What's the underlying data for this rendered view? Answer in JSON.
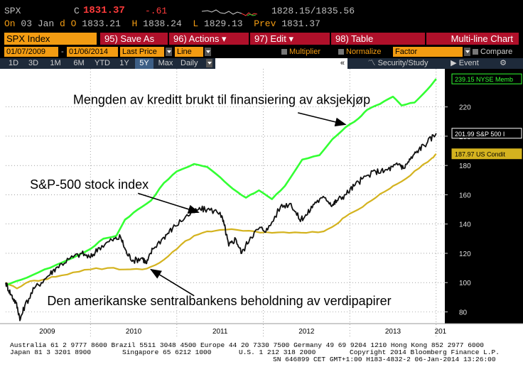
{
  "quote": {
    "symbol": "SPX",
    "close_flag": "C",
    "last": "1831.37",
    "change": "-.61",
    "bid_ask": "1828.15/1835.56",
    "on_label": "On",
    "date": "03 Jan",
    "d_label": "d",
    "open_label": "O",
    "open": "1833.21",
    "high_label": "H",
    "high": "1838.24",
    "low_label": "L",
    "low": "1829.13",
    "prev_label": "Prev",
    "prev": "1831.37"
  },
  "toolbar": {
    "security": "SPX Index",
    "save": "95) Save As",
    "actions": "96) Actions",
    "edit": "97) Edit",
    "table": "98) Table",
    "view": "Multi-line Chart"
  },
  "options": {
    "start_date": "01/07/2009",
    "dash": "-",
    "end_date": "01/06/2014",
    "field": "Last Price",
    "style": "Line",
    "multiplier": "Multiplier",
    "normalize": "Normalize",
    "factor": "Factor",
    "compare": "Compare"
  },
  "periods": {
    "items": [
      "1D",
      "3D",
      "1M",
      "6M",
      "YTD",
      "1Y",
      "5Y",
      "Max"
    ],
    "selected": "5Y",
    "frequency": "Daily",
    "collapse": "«",
    "security_study": "Security/Study",
    "event": "Event"
  },
  "chart_data": {
    "type": "line",
    "ylim": [
      72,
      246
    ],
    "y_ticks": [
      80,
      100,
      120,
      140,
      160,
      180,
      200,
      220
    ],
    "x_labels": [
      "2009",
      "2010",
      "2011",
      "2012",
      "2013",
      "201"
    ],
    "x_label_pos": [
      2009.5,
      2010.5,
      2011.5,
      2012.5,
      2013.5,
      2014.05
    ],
    "x_range": [
      2009.02,
      2014.1
    ],
    "series": [
      {
        "name": "NYSE Memb",
        "color": "#33ff33",
        "last_label": "239.15 NYSE Memb",
        "points": [
          [
            2009.02,
            98
          ],
          [
            2009.2,
            102
          ],
          [
            2009.4,
            107
          ],
          [
            2009.6,
            112
          ],
          [
            2009.8,
            117
          ],
          [
            2010.0,
            123
          ],
          [
            2010.15,
            130
          ],
          [
            2010.3,
            132
          ],
          [
            2010.4,
            143
          ],
          [
            2010.55,
            150
          ],
          [
            2010.7,
            156
          ],
          [
            2010.85,
            168
          ],
          [
            2011.0,
            176
          ],
          [
            2011.2,
            181
          ],
          [
            2011.35,
            179
          ],
          [
            2011.5,
            172
          ],
          [
            2011.65,
            164
          ],
          [
            2011.8,
            158
          ],
          [
            2011.95,
            163
          ],
          [
            2012.1,
            157
          ],
          [
            2012.25,
            166
          ],
          [
            2012.45,
            184
          ],
          [
            2012.65,
            187
          ],
          [
            2012.8,
            198
          ],
          [
            2012.95,
            206
          ],
          [
            2013.1,
            212
          ],
          [
            2013.2,
            218
          ],
          [
            2013.35,
            222
          ],
          [
            2013.5,
            227
          ],
          [
            2013.6,
            221
          ],
          [
            2013.75,
            223
          ],
          [
            2013.9,
            232
          ],
          [
            2014.0,
            239.15
          ]
        ]
      },
      {
        "name": "S&P 500 I",
        "color": "#111111",
        "last_label": "201.99 S&P 500 I",
        "points": [
          [
            2009.02,
            100
          ],
          [
            2009.08,
            92
          ],
          [
            2009.14,
            86
          ],
          [
            2009.19,
            75
          ],
          [
            2009.24,
            84
          ],
          [
            2009.35,
            96
          ],
          [
            2009.5,
            104
          ],
          [
            2009.6,
            110
          ],
          [
            2009.75,
            116
          ],
          [
            2009.9,
            120
          ],
          [
            2010.0,
            117
          ],
          [
            2010.1,
            124
          ],
          [
            2010.25,
            129
          ],
          [
            2010.35,
            131
          ],
          [
            2010.42,
            120
          ],
          [
            2010.5,
            115
          ],
          [
            2010.6,
            117
          ],
          [
            2010.65,
            113
          ],
          [
            2010.72,
            123
          ],
          [
            2010.85,
            131
          ],
          [
            2010.95,
            137
          ],
          [
            2011.1,
            145
          ],
          [
            2011.25,
            150
          ],
          [
            2011.35,
            150
          ],
          [
            2011.5,
            148
          ],
          [
            2011.55,
            139
          ],
          [
            2011.6,
            125
          ],
          [
            2011.68,
            130
          ],
          [
            2011.75,
            120
          ],
          [
            2011.85,
            131
          ],
          [
            2011.95,
            137
          ],
          [
            2012.05,
            136
          ],
          [
            2012.2,
            152
          ],
          [
            2012.32,
            154
          ],
          [
            2012.42,
            143
          ],
          [
            2012.5,
            146
          ],
          [
            2012.6,
            155
          ],
          [
            2012.72,
            158
          ],
          [
            2012.8,
            153
          ],
          [
            2012.85,
            156
          ],
          [
            2012.95,
            160
          ],
          [
            2013.05,
            166
          ],
          [
            2013.15,
            171
          ],
          [
            2013.3,
            176
          ],
          [
            2013.4,
            176
          ],
          [
            2013.5,
            179
          ],
          [
            2013.58,
            181
          ],
          [
            2013.62,
            178
          ],
          [
            2013.7,
            184
          ],
          [
            2013.8,
            191
          ],
          [
            2013.9,
            196
          ],
          [
            2014.0,
            201.99
          ]
        ]
      },
      {
        "name": "US Condit",
        "color": "#d4b31f",
        "last_label": "187.97 US Condit",
        "points": [
          [
            2009.02,
            100
          ],
          [
            2009.15,
            96
          ],
          [
            2009.3,
            101
          ],
          [
            2009.45,
            102
          ],
          [
            2009.6,
            104
          ],
          [
            2009.8,
            107
          ],
          [
            2010.0,
            109
          ],
          [
            2010.2,
            110
          ],
          [
            2010.4,
            109
          ],
          [
            2010.6,
            109
          ],
          [
            2010.75,
            112
          ],
          [
            2010.9,
            118
          ],
          [
            2011.05,
            126
          ],
          [
            2011.2,
            132
          ],
          [
            2011.35,
            135
          ],
          [
            2011.5,
            136
          ],
          [
            2011.7,
            136
          ],
          [
            2011.9,
            135
          ],
          [
            2012.1,
            134
          ],
          [
            2012.3,
            134
          ],
          [
            2012.5,
            134
          ],
          [
            2012.7,
            135
          ],
          [
            2012.85,
            140
          ],
          [
            2012.95,
            145
          ],
          [
            2013.1,
            150
          ],
          [
            2013.25,
            156
          ],
          [
            2013.4,
            162
          ],
          [
            2013.5,
            166
          ],
          [
            2013.65,
            171
          ],
          [
            2013.8,
            178
          ],
          [
            2013.95,
            185
          ],
          [
            2014.0,
            187.97
          ]
        ]
      }
    ],
    "annotations": [
      {
        "text": "Mengden av kreditt brukt til finansiering av aksjekjøp",
        "x": 2009.8,
        "y": 222,
        "arrow_to": [
          2012.95,
          208
        ]
      },
      {
        "text": "S&P-500 stock index",
        "x": 2009.3,
        "y": 164,
        "arrow_to": [
          2011.25,
          148
        ]
      },
      {
        "text": "Den amerikanske sentralbankens beholdning av verdipapirer",
        "x": 2009.5,
        "y": 84.5,
        "arrow_to": [
          2010.7,
          109
        ]
      }
    ]
  },
  "footer": {
    "line1": "Australia 61 2 9777 8600 Brazil 5511 3048 4500 Europe 44 20 7330 7500 Germany 49 69 9204 1210 Hong Kong 852 2977 6000",
    "line2a": "Japan 81 3 3201 8900",
    "line2b": "Singapore 65 6212 1000",
    "line2c": "U.S. 1 212 318 2000",
    "line2d": "Copyright 2014 Bloomberg Finance L.P.",
    "line3": "SN 646899 CET  GMT+1:00 H183-4832-2 06-Jan-2014 13:26:00"
  }
}
